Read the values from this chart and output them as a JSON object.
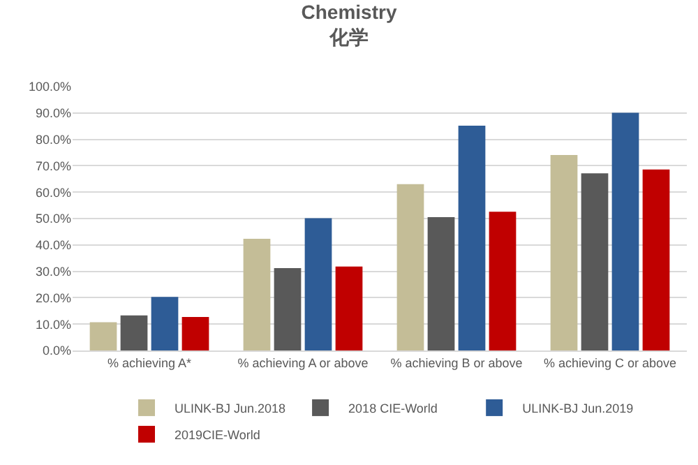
{
  "chart_data": {
    "type": "bar",
    "title": "Chemistry",
    "subtitle": "化学",
    "categories": [
      "% achieving A*",
      "% achieving A or above",
      "% achieving B or above",
      "% achieving C or above"
    ],
    "series": [
      {
        "name": "ULINK-BJ Jun.2018",
        "color": "#c4bd97",
        "values": [
          10.7,
          42.3,
          63.0,
          74.1
        ]
      },
      {
        "name": "2018 CIE-World",
        "color": "#595959",
        "values": [
          13.3,
          31.2,
          50.5,
          67.1
        ]
      },
      {
        "name": "ULINK-BJ Jun.2019",
        "color": "#2e5c96",
        "values": [
          20.3,
          50.1,
          85.2,
          90.1
        ]
      },
      {
        "name": "2019CIE-World",
        "color": "#c00000",
        "values": [
          12.7,
          31.8,
          52.6,
          68.6
        ]
      }
    ],
    "ylim": [
      0,
      100
    ],
    "yticks": [
      {
        "value": 0,
        "label": "0.0%"
      },
      {
        "value": 10,
        "label": "10.0%"
      },
      {
        "value": 20,
        "label": "20.0%"
      },
      {
        "value": 30,
        "label": "30.0%"
      },
      {
        "value": 40,
        "label": "40.0%"
      },
      {
        "value": 50,
        "label": "50.0%"
      },
      {
        "value": 60,
        "label": "60.0%"
      },
      {
        "value": 70,
        "label": "70.0%"
      },
      {
        "value": 80,
        "label": "80.0%"
      },
      {
        "value": 90,
        "label": "90.0%"
      },
      {
        "value": 100,
        "label": "100.0%"
      }
    ],
    "grid": "y",
    "legend": "bottom"
  }
}
